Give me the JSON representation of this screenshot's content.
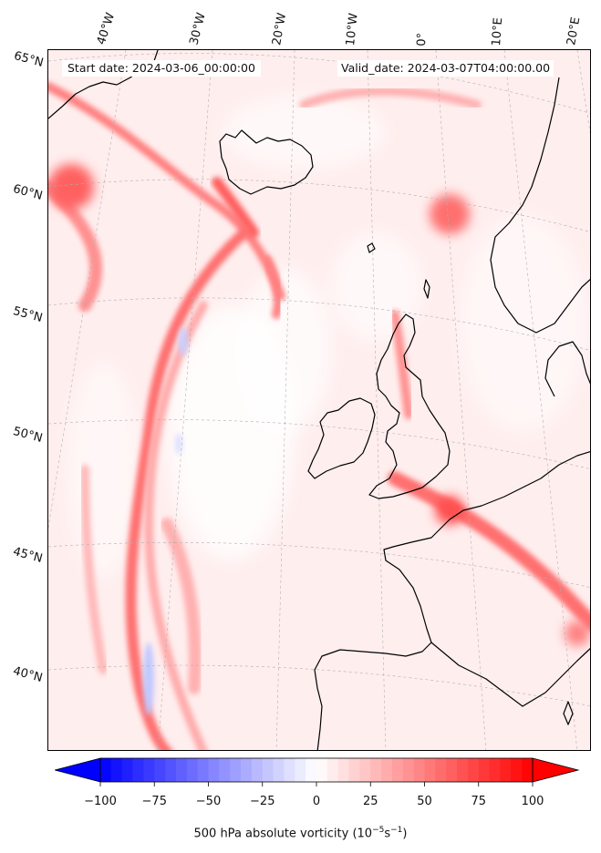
{
  "header": {
    "start_text": "Start date: 2024-03-06_00:00:00",
    "valid_text": "Valid_date: 2024-03-07T04:00:00.00"
  },
  "map": {
    "projection": "lambert-conformal",
    "field": "500 hPa absolute vorticity",
    "lon_labels": [
      "40°W",
      "30°W",
      "20°W",
      "10°W",
      "0°",
      "10°E",
      "20°E"
    ],
    "lat_labels": [
      "65°N",
      "60°N",
      "55°N",
      "50°N",
      "45°N",
      "40°N"
    ],
    "gridlines": true
  },
  "colorbar": {
    "min": -100,
    "max": 100,
    "ticks": [
      "−100",
      "−75",
      "−50",
      "−25",
      "0",
      "25",
      "50",
      "75",
      "100"
    ],
    "title": "500 hPa absolute vorticity (10",
    "title_exp1": "−5",
    "title_mid": "s",
    "title_exp2": "−1",
    "title_end": ")",
    "colors": {
      "low": "#0000ff",
      "mid": "#ffffff",
      "high": "#ff0000"
    },
    "extend": "both"
  }
}
